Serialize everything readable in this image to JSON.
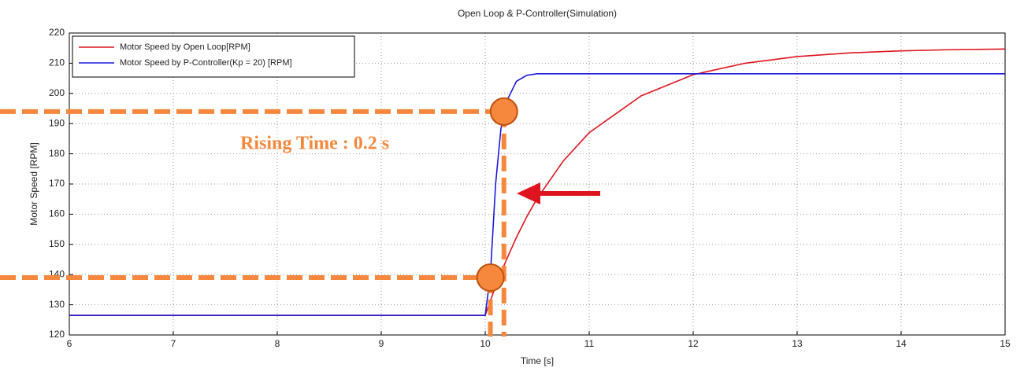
{
  "chart_data": {
    "type": "line",
    "title": "Open Loop & P-Controller(Simulation)",
    "x_label": "Time [s]",
    "y_label": "Motor Speed [RPM]",
    "x": [
      6,
      10,
      10.05,
      10.1,
      10.15,
      10.2,
      10.3,
      10.4,
      10.5,
      10.75,
      11,
      11.5,
      12,
      12.5,
      13,
      13.5,
      14,
      14.5,
      15
    ],
    "series": [
      {
        "name": "Motor Speed by Open Loop[RPM]",
        "color": "#e0141e",
        "values": [
          126.5,
          126.5,
          131.4,
          136.1,
          140.5,
          144.6,
          152.3,
          159.2,
          165.2,
          177.6,
          187.0,
          199.2,
          206.2,
          210.0,
          212.2,
          213.4,
          214.1,
          214.5,
          214.7
        ]
      },
      {
        "name": "Motor Speed by P-Controller(Kp = 20) [RPM]",
        "color": "#1a1adc",
        "values": [
          126.5,
          126.5,
          140,
          170,
          188,
          197,
          204,
          206,
          206.5,
          206.5,
          206.5,
          206.5,
          206.5,
          206.5,
          206.5,
          206.5,
          206.5,
          206.5,
          206.5
        ]
      }
    ],
    "markers": {
      "x": [
        10.05,
        10.18
      ],
      "values": [
        139,
        194
      ],
      "color": "#f5883c"
    },
    "annotation": "Rising Time : 0.2 s",
    "xlim": [
      6,
      15
    ],
    "xticks": [
      6,
      7,
      8,
      9,
      10,
      11,
      12,
      13,
      14,
      15
    ],
    "ylim": [
      120,
      220
    ],
    "yticks": [
      120,
      130,
      140,
      150,
      160,
      170,
      180,
      190,
      200,
      210,
      220
    ],
    "grid": true,
    "legend": "upper left"
  }
}
